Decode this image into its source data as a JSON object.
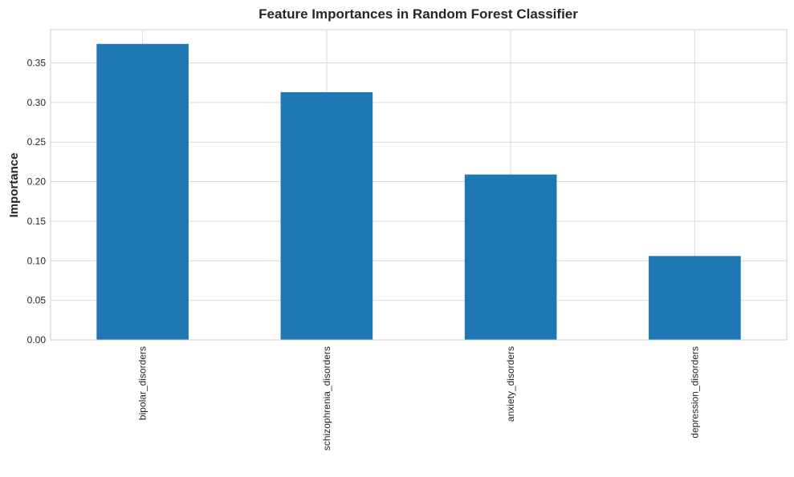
{
  "chart_data": {
    "type": "bar",
    "title": "Feature Importances in Random Forest Classifier",
    "xlabel": "",
    "ylabel": "Importance",
    "categories": [
      "bipolar_disorders",
      "schizophrenia_disorders",
      "anxiety_disorders",
      "depression_disorders"
    ],
    "values": [
      0.374,
      0.313,
      0.209,
      0.106
    ],
    "yticks": [
      0.0,
      0.05,
      0.1,
      0.15,
      0.2,
      0.25,
      0.3,
      0.35
    ],
    "ytick_labels": [
      "0.00",
      "0.05",
      "0.10",
      "0.15",
      "0.20",
      "0.25",
      "0.30",
      "0.35"
    ],
    "ylim": [
      0,
      0.392
    ],
    "grid": true,
    "legend": "none",
    "colors": {
      "bar": "#1f77b4",
      "grid": "#d9d9d9",
      "axes_edge": "#cccccc",
      "text": "#262626",
      "background": "#ffffff"
    }
  }
}
